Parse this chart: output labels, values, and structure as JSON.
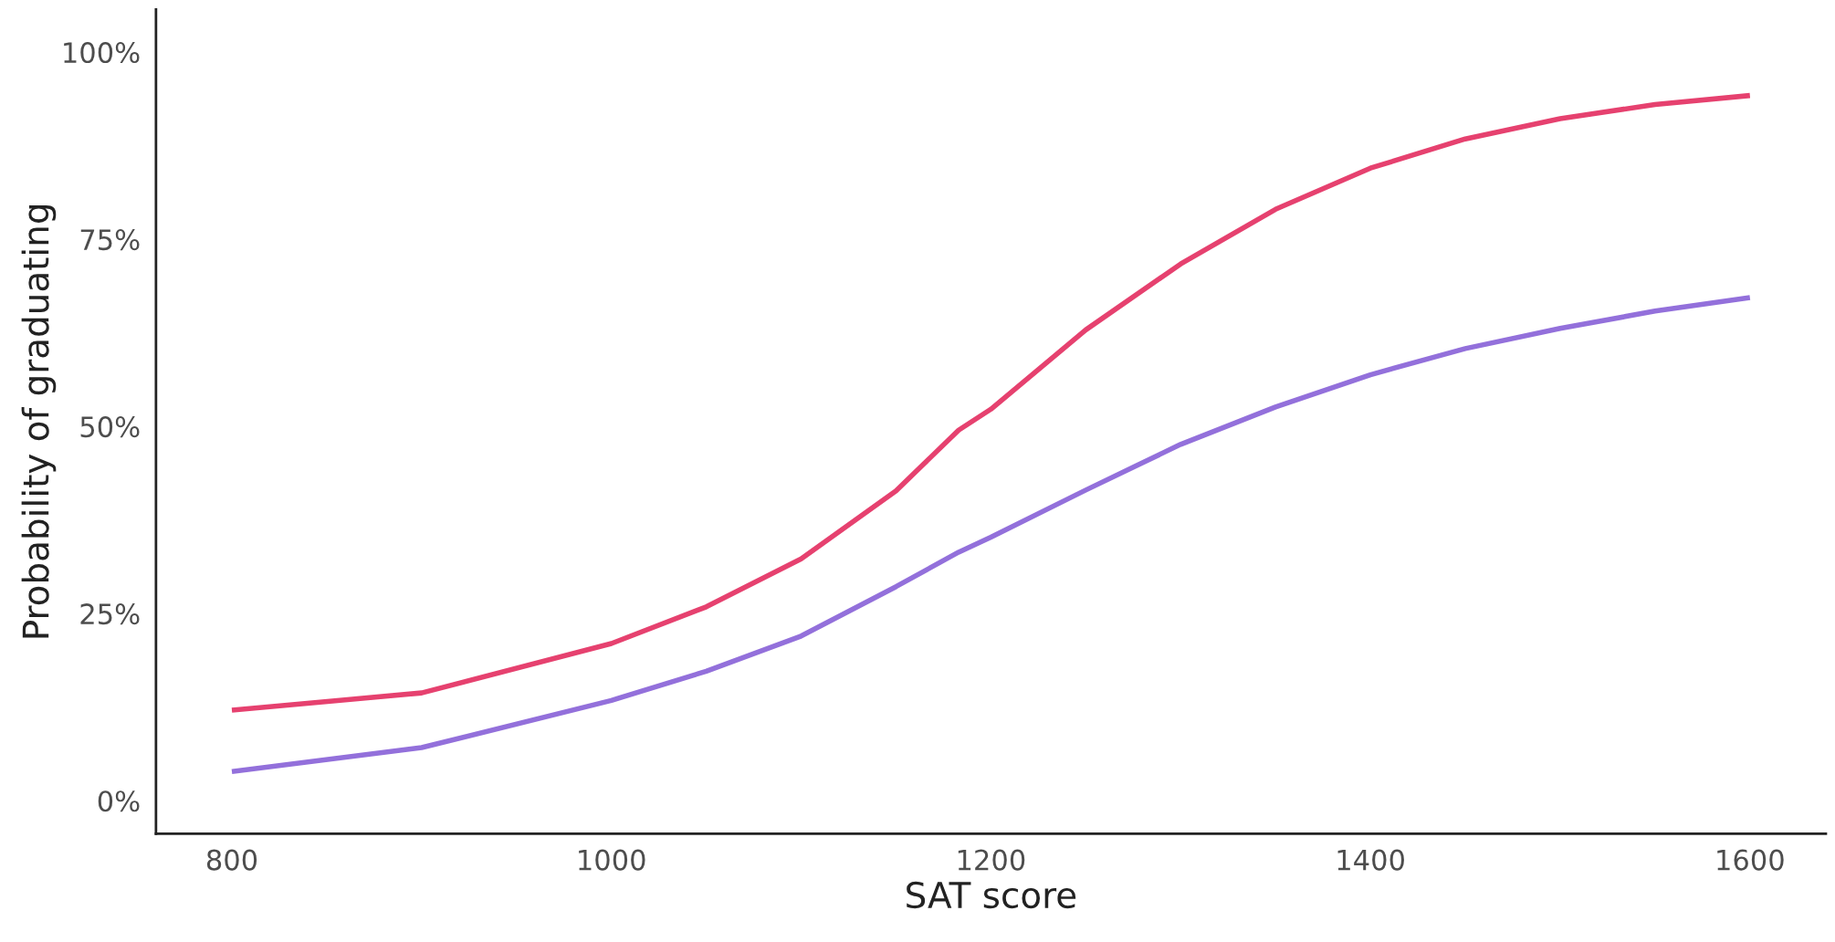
{
  "chart_data": {
    "type": "line",
    "xlabel": "SAT score",
    "ylabel": "Probability of graduating",
    "x": [
      800,
      900,
      1000,
      1050,
      1100,
      1150,
      1183,
      1200,
      1250,
      1300,
      1350,
      1400,
      1450,
      1500,
      1550,
      1600
    ],
    "series": [
      {
        "color": "#e6416f",
        "values": [
          12.1,
          14.4,
          21.0,
          25.9,
          32.3,
          41.4,
          49.5,
          52.3,
          62.9,
          71.7,
          79.0,
          84.5,
          88.4,
          91.1,
          93.0,
          94.2
        ]
      },
      {
        "color": "#9370db",
        "values": [
          3.9,
          7.1,
          13.4,
          17.3,
          22.0,
          28.6,
          33.2,
          35.2,
          41.5,
          47.6,
          52.6,
          56.9,
          60.4,
          63.1,
          65.4,
          67.2
        ]
      }
    ],
    "xlim": [
      760,
      1640
    ],
    "ylim": [
      -4.4,
      105.7
    ],
    "xticks": [
      800,
      1000,
      1200,
      1400,
      1600
    ],
    "yticks": [
      {
        "value": 0,
        "label": "0%"
      },
      {
        "value": 25,
        "label": "25%"
      },
      {
        "value": 50,
        "label": "50%"
      },
      {
        "value": 75,
        "label": "75%"
      },
      {
        "value": 100,
        "label": "100%"
      }
    ],
    "grid": false,
    "legend": false
  }
}
